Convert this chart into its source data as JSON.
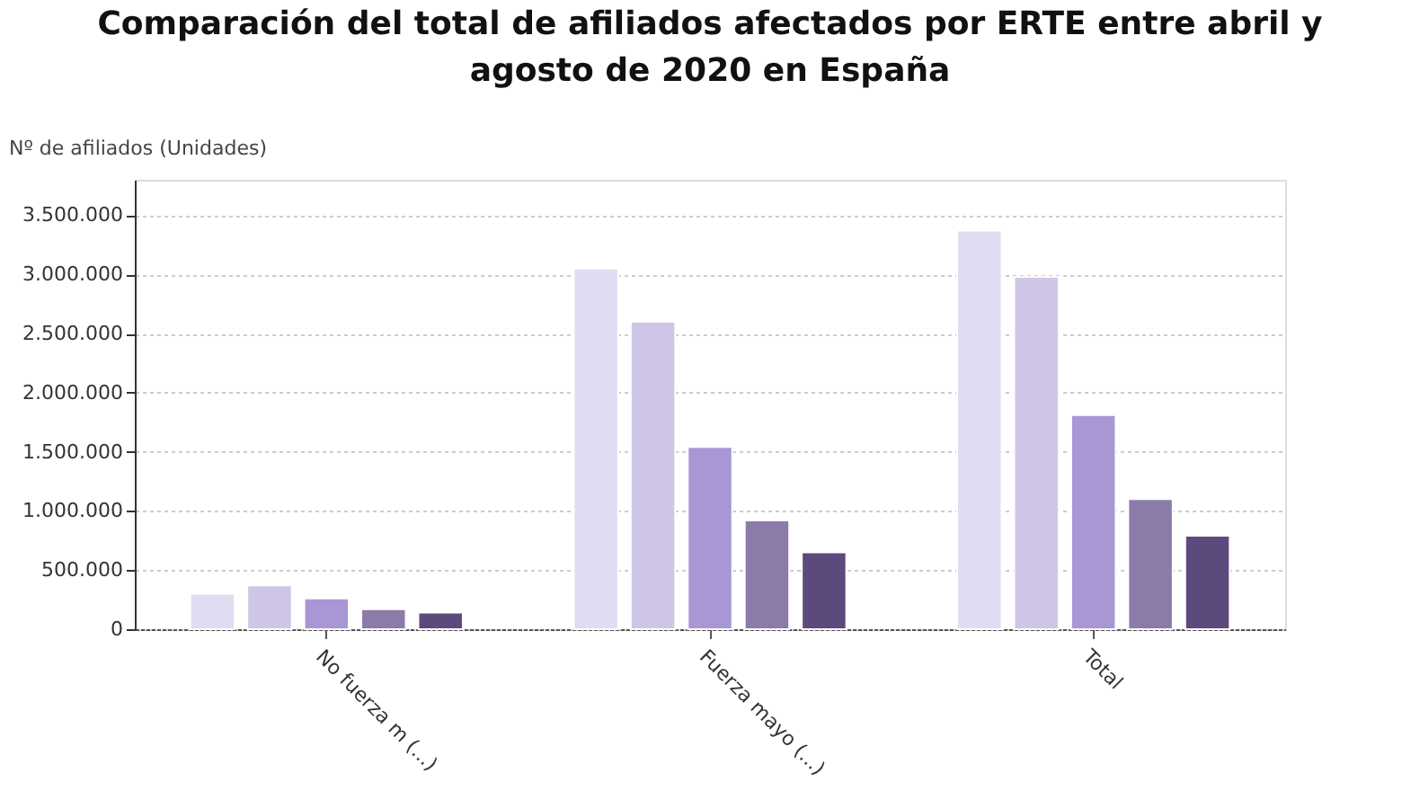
{
  "chart_data": {
    "type": "bar",
    "title": "Comparación del total de afiliados afectados por ERTE entre abril y agosto de 2020 en España",
    "ylabel": "Nº de afiliados (Unidades)",
    "categories": [
      "No fuerza m (...)",
      "Fuerza mayo (...)",
      "Total"
    ],
    "series": [
      {
        "color": "#e2dcf2",
        "values": [
          300000,
          3050000,
          3370000
        ]
      },
      {
        "color": "#cfc5e6",
        "values": [
          370000,
          2600000,
          2980000
        ]
      },
      {
        "color": "#a996d4",
        "values": [
          260000,
          1540000,
          1810000
        ]
      },
      {
        "color": "#8a7ba8",
        "values": [
          170000,
          920000,
          1100000
        ]
      },
      {
        "color": "#5c4a7c",
        "values": [
          140000,
          650000,
          790000
        ]
      }
    ],
    "ylim": [
      0,
      3800000
    ],
    "yticks": [
      {
        "value": 0,
        "label": "0"
      },
      {
        "value": 500000,
        "label": "500.000"
      },
      {
        "value": 1000000,
        "label": "1.000.000"
      },
      {
        "value": 1500000,
        "label": "1.500.000"
      },
      {
        "value": 2000000,
        "label": "2.000.000"
      },
      {
        "value": 2500000,
        "label": "2.500.000"
      },
      {
        "value": 3000000,
        "label": "3.000.000"
      },
      {
        "value": 3500000,
        "label": "3.500.000"
      }
    ],
    "grid": "y",
    "legend": false
  }
}
